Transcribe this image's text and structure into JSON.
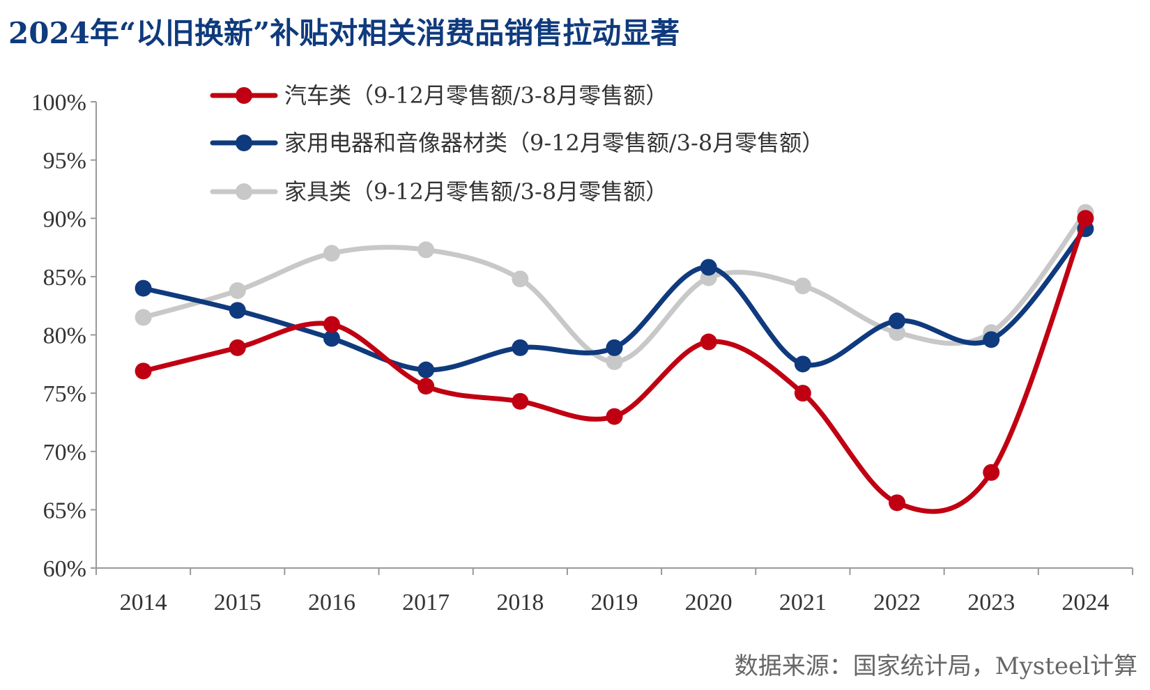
{
  "title": "2024年“以旧换新”补贴对相关消费品销售拉动显著",
  "source": "数据来源：国家统计局，Mysteel计算",
  "colors": {
    "auto": "#c00012",
    "appliance": "#0f3a7d",
    "furniture": "#c8c8c8",
    "axis": "#999999",
    "title": "#0f3a7d"
  },
  "chart_data": {
    "type": "line",
    "categories": [
      "2014",
      "2015",
      "2016",
      "2017",
      "2018",
      "2019",
      "2020",
      "2021",
      "2022",
      "2023",
      "2024"
    ],
    "ylim": [
      0.6,
      1.0
    ],
    "yticks": [
      0.6,
      0.65,
      0.7,
      0.75,
      0.8,
      0.85,
      0.9,
      0.95,
      1.0
    ],
    "ytick_labels": [
      "60%",
      "65%",
      "70%",
      "75%",
      "80%",
      "85%",
      "90%",
      "95%",
      "100%"
    ],
    "smooth": true,
    "legend_position": "top-left",
    "series": [
      {
        "name": "汽车类（9-12月零售额/3-8月零售额）",
        "color_key": "auto",
        "values": [
          0.769,
          0.789,
          0.809,
          0.756,
          0.743,
          0.73,
          0.794,
          0.75,
          0.656,
          0.682,
          0.9
        ]
      },
      {
        "name": "家用电器和音像器材类（9-12月零售额/3-8月零售额）",
        "color_key": "appliance",
        "values": [
          0.84,
          0.821,
          0.797,
          0.77,
          0.789,
          0.789,
          0.858,
          0.775,
          0.812,
          0.796,
          0.891
        ]
      },
      {
        "name": "家具类（9-12月零售额/3-8月零售额）",
        "color_key": "furniture",
        "values": [
          0.815,
          0.838,
          0.87,
          0.873,
          0.848,
          0.777,
          0.849,
          0.842,
          0.802,
          0.802,
          0.905
        ]
      }
    ]
  }
}
